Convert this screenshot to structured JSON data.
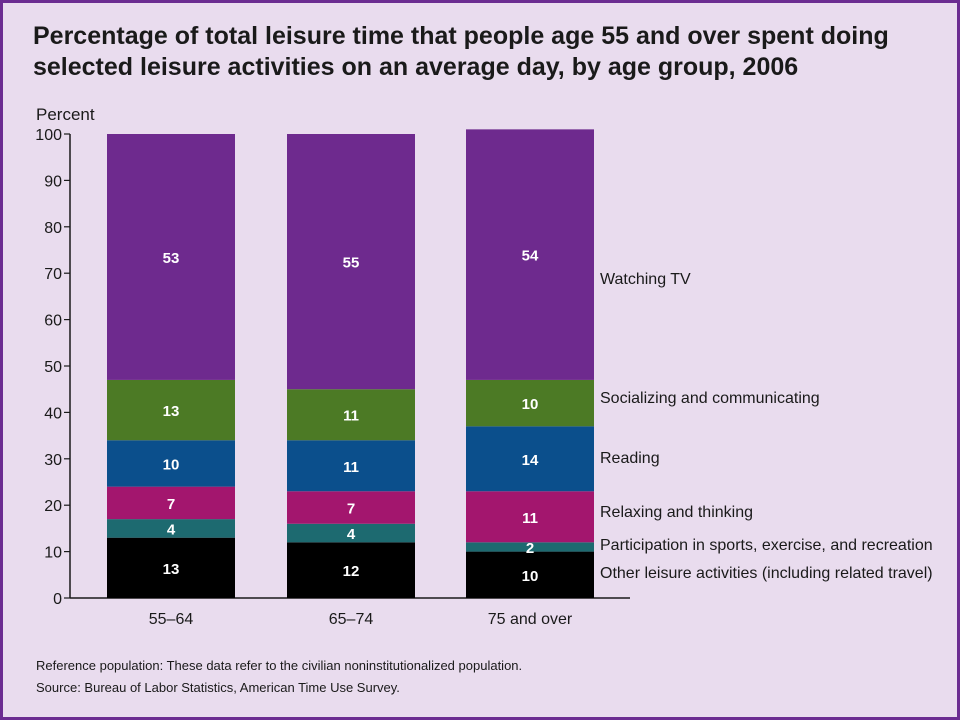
{
  "chart_data": {
    "type": "bar",
    "stacked": true,
    "title": "Percentage of total leisure time that people age 55 and over spent doing selected leisure activities on an average day, by age group, 2006",
    "ylabel": "Percent",
    "xlabel": "",
    "ylim": [
      0,
      100
    ],
    "yticks": [
      "0",
      "10",
      "20",
      "30",
      "40",
      "50",
      "60",
      "70",
      "80",
      "90",
      "100"
    ],
    "categories": [
      "55–64",
      "65–74",
      "75 and over"
    ],
    "series": [
      {
        "name": "Other leisure activities (including related travel)",
        "color": "#000000",
        "values": [
          13,
          12,
          10
        ]
      },
      {
        "name": "Participation in sports, exercise, and recreation",
        "color": "#1d6a70",
        "values": [
          4,
          4,
          2
        ]
      },
      {
        "name": "Relaxing and thinking",
        "color": "#a3166e",
        "values": [
          7,
          7,
          11
        ]
      },
      {
        "name": "Reading",
        "color": "#0b4f8c",
        "values": [
          10,
          11,
          14
        ]
      },
      {
        "name": "Socializing and communicating",
        "color": "#4c7a25",
        "values": [
          13,
          11,
          10
        ]
      },
      {
        "name": "Watching TV",
        "color": "#6e2a8e",
        "values": [
          53,
          55,
          54
        ]
      }
    ]
  },
  "notes": {
    "reference": "Reference population: These data refer to the civilian noninstitutionalized population.",
    "source": "Source: Bureau of Labor Statistics, American Time Use Survey."
  }
}
